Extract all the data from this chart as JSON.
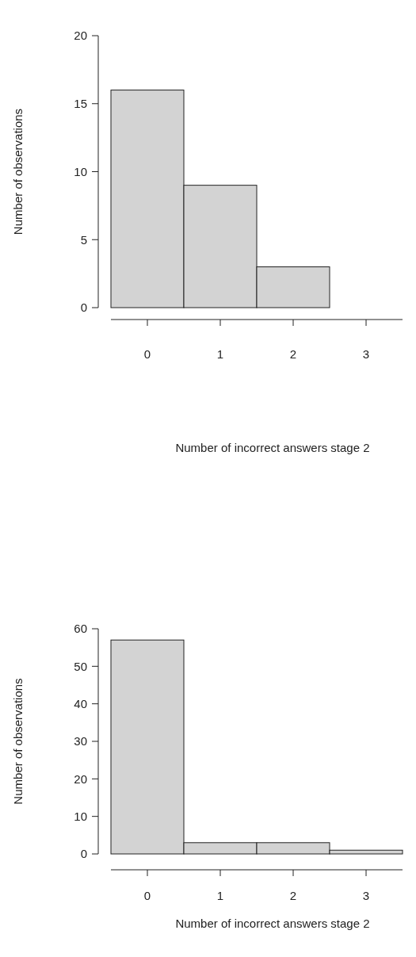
{
  "chart_data": [
    {
      "type": "histogram",
      "bins": [
        -0.5,
        0.5,
        1.5,
        2.5,
        3.5
      ],
      "values": [
        16,
        9,
        3,
        0
      ],
      "color": "#d3d3d3",
      "xlim": [
        -0.5,
        3.5
      ],
      "xticks": [
        0,
        1,
        2,
        3
      ],
      "ylim": [
        0,
        20
      ],
      "yticks": [
        0,
        5,
        10,
        15,
        20
      ],
      "xlabel": "Number of incorrect answers stage 2",
      "ylabel": "Number of observations",
      "grid": false
    },
    {
      "type": "histogram",
      "bins": [
        -0.5,
        0.5,
        1.5,
        2.5,
        3.5
      ],
      "values": [
        57,
        3,
        3,
        1
      ],
      "color": "#d3d3d3",
      "xlim": [
        -0.5,
        3.5
      ],
      "xticks": [
        0,
        1,
        2,
        3
      ],
      "ylim": [
        0,
        60
      ],
      "yticks": [
        0,
        10,
        20,
        30,
        40,
        50,
        60
      ],
      "xlabel": "Number of incorrect answers stage 2",
      "ylabel": "Number of observations",
      "grid": false
    }
  ]
}
